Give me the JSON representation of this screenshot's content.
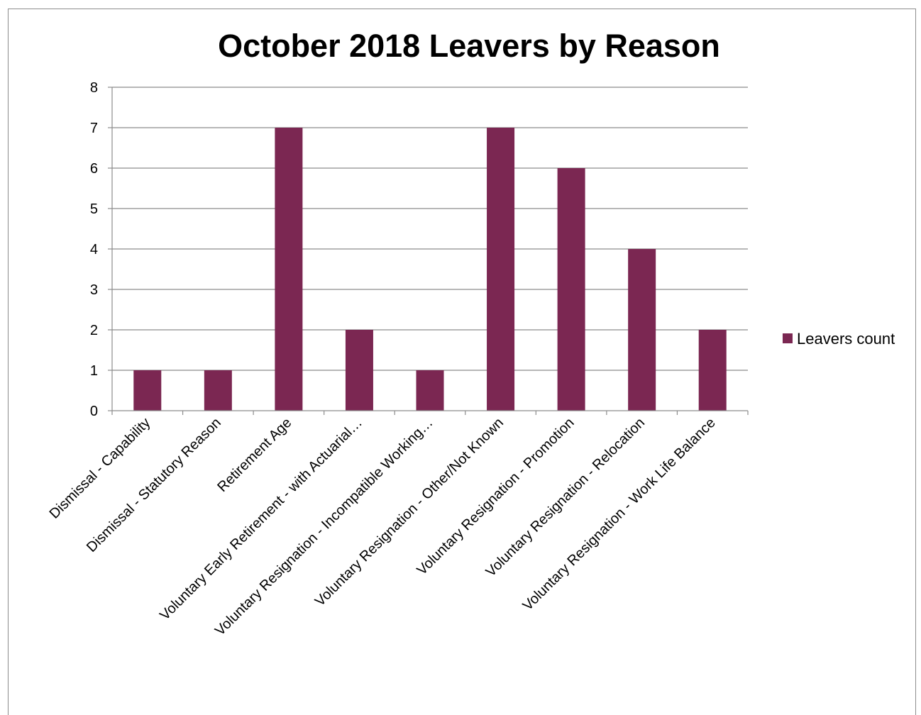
{
  "chart_data": {
    "type": "bar",
    "title": "October 2018 Leavers by Reason",
    "xlabel": "",
    "ylabel": "",
    "ylim": [
      0,
      8
    ],
    "yticks": [
      0,
      1,
      2,
      3,
      4,
      5,
      6,
      7,
      8
    ],
    "grid": true,
    "legend_position": "right",
    "bar_color": "#7b2752",
    "categories": [
      "Dismissal - Capability",
      "Dismissal - Statutory Reason",
      "Retirement Age",
      "Voluntary Early Retirement - with Actuarial…",
      "Voluntary Resignation - Incompatible Working…",
      "Voluntary Resignation - Other/Not Known",
      "Voluntary Resignation - Promotion",
      "Voluntary Resignation - Relocation",
      "Voluntary Resignation - Work Life Balance"
    ],
    "series": [
      {
        "name": "Leavers count",
        "values": [
          1,
          1,
          7,
          2,
          1,
          7,
          6,
          4,
          2
        ]
      }
    ]
  }
}
